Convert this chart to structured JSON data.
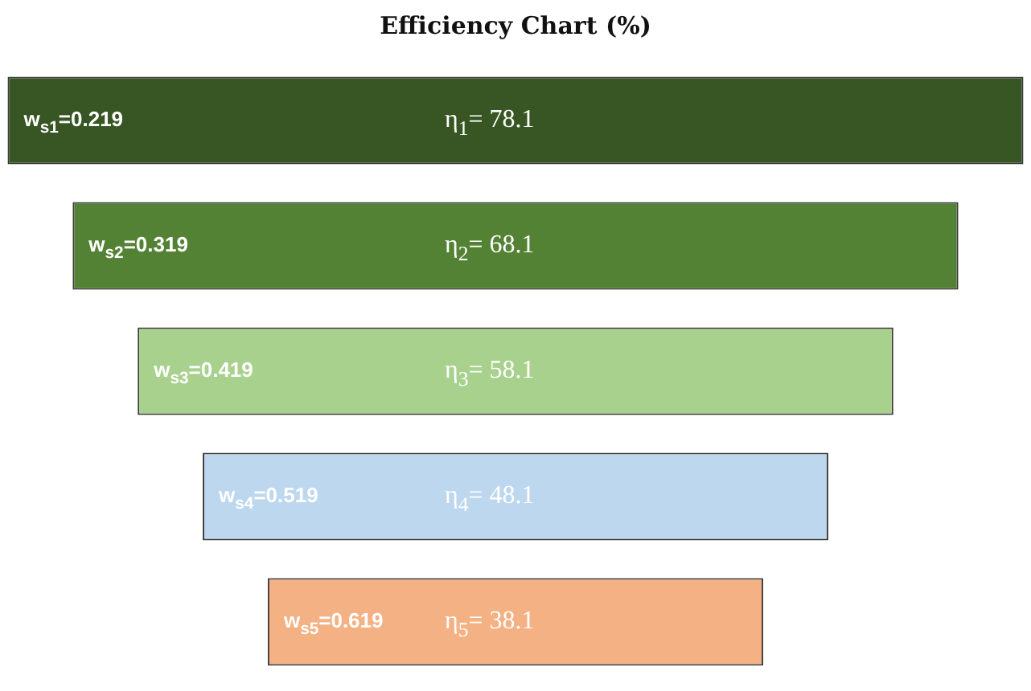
{
  "chart_data": {
    "type": "other",
    "title": "Efficiency Chart (%)",
    "categories": [
      "w$_{s1}$=0.219",
      "w$_{s2}$=0.319",
      "w$_{s3}$=0.419",
      "w$_{s4}$=0.519",
      "w$_{s5}$=0.619"
    ],
    "values": [
      78.1,
      68.1,
      58.1,
      48.1,
      38.1
    ],
    "value_labels": [
      "η$_{1}$= 78.1",
      "η$_{2}$= 68.1",
      "η$_{3}$= 58.1",
      "η$_{4}$= 48.1",
      "η$_{5}$= 38.1"
    ],
    "colors": [
      "#375623",
      "#548235",
      "#a9d18e",
      "#bdd7ee",
      "#f4b183"
    ]
  }
}
